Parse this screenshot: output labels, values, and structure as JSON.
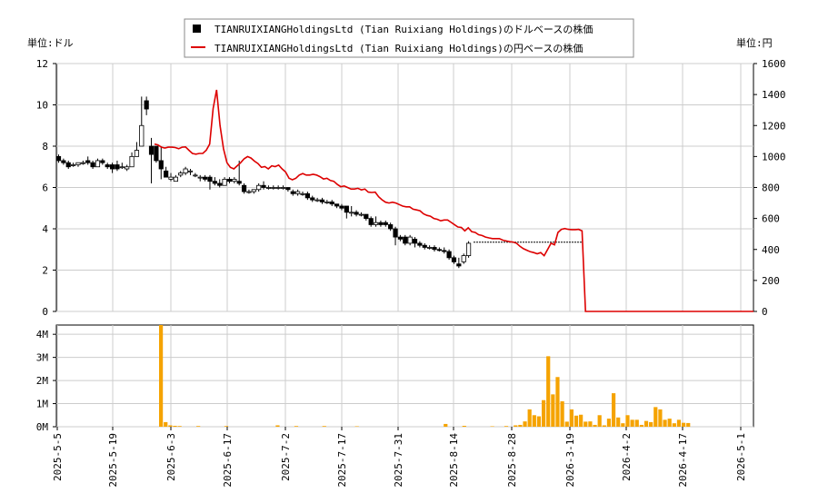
{
  "chart_data": [
    {
      "type": "candlestick",
      "legend": {
        "usd_label": "TIANRUIXIANGHoldingsLtd (Tian Ruixiang Holdings)のドルベースの株価",
        "jpy_label": "TIANRUIXIANGHoldingsLtd (Tian Ruixiang Holdings)の円ベースの株価",
        "placement": "top-center"
      },
      "left_unit": "単位:ドル",
      "right_unit": "単位:円",
      "left_ylim": [
        0,
        12
      ],
      "left_yticks": [
        "0",
        "2",
        "4",
        "6",
        "8",
        "10",
        "12"
      ],
      "right_ylim": [
        0,
        1600
      ],
      "right_yticks": [
        "0",
        "200",
        "400",
        "600",
        "800",
        "1000",
        "1200",
        "1400",
        "1600"
      ],
      "grid": true,
      "colors": {
        "up": "#ffffff",
        "down": "#000000",
        "jpy_line": "#dd0000"
      },
      "usd_candles": [
        [
          7.5,
          7.6,
          7.2,
          7.3
        ],
        [
          7.3,
          7.4,
          7.1,
          7.2
        ],
        [
          7.2,
          7.3,
          6.9,
          7.0
        ],
        [
          7.1,
          7.2,
          7.0,
          7.1
        ],
        [
          7.1,
          7.2,
          7.0,
          7.2
        ],
        [
          7.2,
          7.3,
          7.1,
          7.2
        ],
        [
          7.3,
          7.5,
          7.1,
          7.2
        ],
        [
          7.2,
          7.3,
          6.9,
          7.0
        ],
        [
          7.0,
          7.4,
          7.0,
          7.3
        ],
        [
          7.3,
          7.4,
          7.1,
          7.2
        ],
        [
          7.1,
          7.2,
          6.9,
          7.0
        ],
        [
          7.1,
          7.2,
          6.7,
          6.9
        ],
        [
          7.1,
          7.3,
          6.8,
          6.9
        ],
        [
          7.0,
          7.2,
          6.9,
          7.0
        ],
        [
          6.9,
          7.1,
          6.8,
          7.0
        ],
        [
          7.0,
          7.7,
          7.0,
          7.5
        ],
        [
          7.5,
          8.2,
          7.5,
          7.8
        ],
        [
          8.0,
          10.4,
          8.0,
          9.0
        ],
        [
          10.2,
          10.4,
          9.5,
          9.8
        ],
        [
          8.0,
          8.4,
          6.2,
          7.6
        ],
        [
          8.0,
          8.0,
          7.2,
          7.3
        ],
        [
          7.3,
          8.0,
          6.4,
          6.9
        ],
        [
          6.8,
          7.0,
          6.5,
          6.5
        ],
        [
          6.4,
          6.7,
          6.3,
          6.5
        ],
        [
          6.3,
          6.6,
          6.3,
          6.5
        ],
        [
          6.6,
          6.8,
          6.5,
          6.7
        ],
        [
          6.7,
          7.0,
          6.6,
          6.9
        ],
        [
          6.8,
          6.9,
          6.6,
          6.8
        ],
        [
          6.6,
          6.7,
          6.5,
          6.6
        ],
        [
          6.5,
          6.6,
          6.3,
          6.5
        ],
        [
          6.5,
          6.6,
          6.3,
          6.4
        ],
        [
          6.5,
          6.6,
          5.9,
          6.3
        ],
        [
          6.3,
          6.5,
          6.1,
          6.2
        ],
        [
          6.2,
          6.4,
          6.0,
          6.1
        ],
        [
          6.1,
          6.5,
          6.1,
          6.4
        ],
        [
          6.4,
          6.5,
          6.2,
          6.3
        ],
        [
          6.3,
          6.5,
          6.2,
          6.4
        ],
        [
          6.3,
          7.3,
          6.1,
          6.2
        ],
        [
          6.1,
          6.2,
          5.7,
          5.8
        ],
        [
          5.8,
          5.9,
          5.7,
          5.8
        ],
        [
          5.8,
          5.9,
          5.7,
          5.9
        ],
        [
          5.9,
          6.2,
          5.8,
          6.1
        ],
        [
          6.1,
          6.3,
          5.9,
          6.0
        ],
        [
          6.0,
          6.1,
          5.9,
          6.0
        ],
        [
          6.0,
          6.1,
          5.9,
          6.0
        ],
        [
          6.0,
          6.1,
          5.9,
          6.0
        ],
        [
          6.0,
          6.1,
          5.9,
          6.0
        ],
        [
          6.0,
          6.0,
          5.8,
          5.9
        ],
        [
          5.8,
          5.9,
          5.6,
          5.7
        ],
        [
          5.7,
          5.9,
          5.6,
          5.8
        ],
        [
          5.7,
          5.8,
          5.6,
          5.7
        ],
        [
          5.7,
          5.8,
          5.4,
          5.5
        ],
        [
          5.5,
          5.6,
          5.3,
          5.4
        ],
        [
          5.4,
          5.5,
          5.3,
          5.4
        ],
        [
          5.4,
          5.5,
          5.2,
          5.3
        ],
        [
          5.3,
          5.4,
          5.2,
          5.3
        ],
        [
          5.3,
          5.4,
          5.1,
          5.2
        ],
        [
          5.2,
          5.2,
          5.0,
          5.1
        ],
        [
          5.1,
          5.2,
          4.9,
          5.0
        ],
        [
          5.1,
          5.1,
          4.5,
          4.8
        ],
        [
          4.8,
          5.1,
          4.6,
          4.8
        ],
        [
          4.8,
          4.9,
          4.6,
          4.7
        ],
        [
          4.7,
          4.8,
          4.6,
          4.7
        ],
        [
          4.7,
          4.7,
          4.4,
          4.5
        ],
        [
          4.5,
          4.6,
          4.1,
          4.2
        ],
        [
          4.2,
          4.6,
          4.1,
          4.3
        ],
        [
          4.3,
          4.4,
          4.1,
          4.2
        ],
        [
          4.3,
          4.4,
          4.1,
          4.2
        ],
        [
          4.2,
          4.3,
          3.9,
          4.0
        ],
        [
          4.0,
          4.1,
          3.2,
          3.6
        ],
        [
          3.6,
          3.7,
          3.4,
          3.5
        ],
        [
          3.6,
          3.7,
          3.2,
          3.3
        ],
        [
          3.3,
          3.7,
          3.2,
          3.6
        ],
        [
          3.5,
          3.6,
          3.1,
          3.3
        ],
        [
          3.3,
          3.4,
          3.1,
          3.2
        ],
        [
          3.2,
          3.3,
          3.0,
          3.1
        ],
        [
          3.1,
          3.2,
          3.0,
          3.1
        ],
        [
          3.1,
          3.2,
          2.9,
          3.0
        ],
        [
          3.0,
          3.1,
          2.9,
          2.95
        ],
        [
          2.95,
          3.1,
          2.8,
          2.9
        ],
        [
          2.9,
          3.0,
          2.5,
          2.6
        ],
        [
          2.6,
          2.7,
          2.3,
          2.4
        ],
        [
          2.3,
          2.6,
          2.1,
          2.2
        ],
        [
          2.4,
          2.8,
          2.3,
          2.7
        ],
        [
          2.7,
          3.4,
          2.6,
          3.3
        ]
      ],
      "usd_flat": {
        "value": 3.35,
        "from_index": 85,
        "to_index": 91
      },
      "jpy_line": [
        1080,
        1075,
        1060,
        1055,
        1060,
        1060,
        1058,
        1050,
        1060,
        1062,
        1040,
        1020,
        1015,
        1020,
        1020,
        1040,
        1080,
        1310,
        1430,
        1200,
        1050,
        960,
        930,
        920,
        940,
        960,
        985,
        1000,
        990,
        970,
        955,
        930,
        935,
        920,
        940,
        935,
        945,
        920,
        900,
        860,
        850,
        860,
        880,
        890,
        880,
        880,
        885,
        880,
        870,
        855,
        860,
        845,
        840,
        820,
        805,
        810,
        800,
        790,
        790,
        795,
        785,
        790,
        770,
        768,
        770,
        740,
        720,
        705,
        700,
        705,
        700,
        690,
        680,
        675,
        675,
        660,
        655,
        650,
        630,
        620,
        615,
        600,
        595,
        585,
        590,
        590,
        575,
        560,
        545,
        542,
        520,
        540,
        515,
        510,
        495,
        490,
        480,
        475,
        470,
        470,
        470,
        460,
        455,
        450,
        448,
        440,
        420,
        405,
        395,
        385,
        380,
        372,
        380,
        360,
        400,
        440,
        430,
        510,
        530,
        535,
        530,
        528,
        528,
        530,
        520,
        0,
        0
      ],
      "jpy_flat_to_end": 0
    },
    {
      "type": "bar",
      "yticks": [
        "0M",
        "1M",
        "2M",
        "3M",
        "4M"
      ],
      "ylim": [
        0,
        4400000
      ],
      "color": "#f5a300",
      "xticks": [
        "2025-5-5",
        "2025-5-19",
        "2025-6-3",
        "2025-6-17",
        "2025-7-2",
        "2025-7-17",
        "2025-7-31",
        "2025-8-14",
        "2025-8-28",
        "2026-3-19",
        "2026-4-2",
        "2026-4-17",
        "2026-5-1"
      ],
      "volumes_jun_to_may": [
        [
          13,
          4400000
        ],
        [
          14,
          200000
        ],
        [
          15,
          60000
        ],
        [
          16,
          40000
        ],
        [
          17,
          30000
        ],
        [
          21,
          30000
        ],
        [
          27,
          30000
        ],
        [
          38,
          60000
        ],
        [
          42,
          30000
        ],
        [
          48,
          30000
        ],
        [
          55,
          20000
        ],
        [
          74,
          120000
        ],
        [
          78,
          40000
        ],
        [
          84,
          20000
        ],
        [
          87,
          30000
        ],
        [
          89,
          60000
        ],
        [
          90,
          80000
        ],
        [
          91,
          230000
        ],
        [
          92,
          750000
        ],
        [
          93,
          500000
        ],
        [
          94,
          450000
        ],
        [
          95,
          1150000
        ],
        [
          96,
          3050000
        ],
        [
          97,
          1400000
        ],
        [
          98,
          2150000
        ],
        [
          99,
          1100000
        ],
        [
          100,
          220000
        ],
        [
          101,
          750000
        ],
        [
          102,
          480000
        ],
        [
          103,
          520000
        ],
        [
          104,
          220000
        ],
        [
          105,
          230000
        ],
        [
          106,
          80000
        ],
        [
          107,
          500000
        ],
        [
          108,
          60000
        ],
        [
          109,
          350000
        ],
        [
          110,
          1450000
        ],
        [
          111,
          400000
        ],
        [
          112,
          150000
        ],
        [
          113,
          500000
        ],
        [
          114,
          300000
        ],
        [
          115,
          300000
        ],
        [
          116,
          80000
        ],
        [
          117,
          250000
        ],
        [
          118,
          200000
        ],
        [
          119,
          850000
        ],
        [
          120,
          750000
        ],
        [
          121,
          300000
        ],
        [
          122,
          350000
        ],
        [
          123,
          150000
        ],
        [
          124,
          300000
        ],
        [
          125,
          170000
        ],
        [
          126,
          160000
        ]
      ]
    }
  ]
}
